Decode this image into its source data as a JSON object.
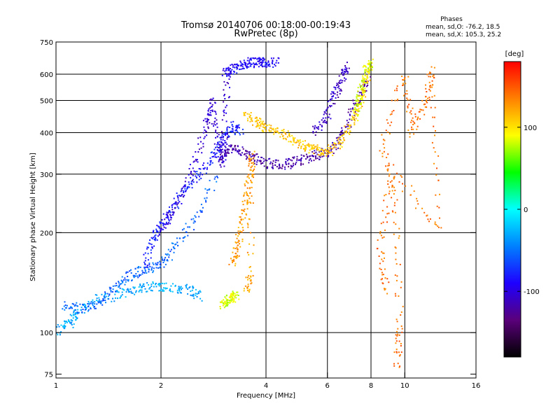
{
  "chart_data": {
    "type": "scatter",
    "title": "Tromsø 20140706 00:18:00-00:19:43",
    "subtitle": "RwPretec (8p)",
    "phases": {
      "heading": "Phases",
      "line_o": "mean, sd,O: -76.2, 18.5",
      "line_x": "mean, sd,X: 105.3, 25.2"
    },
    "xlabel": "Frequency [MHz]",
    "ylabel": "Stationary phase Virtual Height [km]",
    "xscale": "log",
    "yscale": "log",
    "xlim": [
      1,
      16
    ],
    "ylim": [
      73,
      750
    ],
    "x_ticks": [
      1,
      2,
      4,
      6,
      8,
      10,
      16
    ],
    "y_ticks": [
      75,
      100,
      200,
      300,
      400,
      500,
      600,
      750
    ],
    "x_grid": [
      2,
      4,
      6,
      8,
      10
    ],
    "y_grid": [
      100,
      200,
      300,
      400,
      500,
      600
    ],
    "grid": true,
    "colorbar": {
      "label": "[deg]",
      "min": -180,
      "max": 180,
      "ticks": [
        100,
        0,
        -100
      ],
      "colors": [
        "#000000",
        "#5a007a",
        "#1e00ff",
        "#0080ff",
        "#00ffff",
        "#00ff00",
        "#ffff00",
        "#ff8000",
        "#ff0000"
      ]
    },
    "traces": [
      {
        "x": [
          1.0,
          1.1,
          1.15,
          1.3,
          1.5,
          1.7,
          1.9,
          2.1,
          2.4,
          2.6
        ],
        "y": [
          101,
          107,
          115,
          125,
          130,
          135,
          138,
          137,
          135,
          128
        ],
        "phase": -30
      },
      {
        "x": [
          1.05,
          1.2,
          1.35,
          1.5,
          1.65,
          1.8,
          2.0,
          2.2,
          2.5,
          2.9
        ],
        "y": [
          120,
          118,
          123,
          140,
          150,
          155,
          160,
          180,
          220,
          300
        ],
        "phase": -55
      },
      {
        "x": [
          1.8,
          1.9,
          2.0,
          2.1,
          2.3,
          2.5,
          2.8,
          3.0,
          3.2,
          3.4
        ],
        "y": [
          160,
          190,
          210,
          230,
          260,
          290,
          330,
          380,
          420,
          400
        ],
        "phase": -80
      },
      {
        "x": [
          2.0,
          2.2,
          2.5,
          2.7,
          2.8,
          2.9,
          3.0,
          3.05,
          3.1
        ],
        "y": [
          200,
          240,
          320,
          420,
          500,
          380,
          320,
          400,
          600
        ],
        "phase": -105
      },
      {
        "x": [
          3.0,
          3.2,
          3.5,
          3.8,
          4.2,
          4.6,
          5.0,
          5.5,
          6.0,
          6.5,
          7.0,
          7.5,
          7.9
        ],
        "y": [
          340,
          360,
          350,
          330,
          320,
          322,
          330,
          340,
          350,
          380,
          450,
          520,
          600
        ],
        "phase": -120
      },
      {
        "x": [
          5.5,
          6.0,
          6.3,
          6.6,
          6.8
        ],
        "y": [
          400,
          450,
          520,
          580,
          640
        ],
        "phase": -110
      },
      {
        "x": [
          3.5,
          3.8,
          4.0,
          4.4,
          4.8,
          5.2,
          5.6,
          6.0,
          6.5,
          7.0,
          7.5,
          7.9
        ],
        "y": [
          450,
          430,
          410,
          400,
          380,
          360,
          355,
          350,
          370,
          420,
          500,
          620
        ],
        "phase": 110
      },
      {
        "x": [
          3.2,
          3.3,
          3.4,
          3.5,
          3.6,
          3.65,
          3.6,
          3.5
        ],
        "y": [
          160,
          180,
          210,
          250,
          300,
          340,
          150,
          130
        ],
        "phase": 125
      },
      {
        "x": [
          3.0,
          3.1,
          3.2,
          3.3
        ],
        "y": [
          120,
          125,
          128,
          130
        ],
        "phase": 85
      },
      {
        "x": [
          3.05,
          3.2,
          3.4,
          3.6,
          3.8,
          4.0,
          4.3
        ],
        "y": [
          600,
          620,
          640,
          650,
          650,
          650,
          655
        ],
        "phase": -90
      },
      {
        "x": [
          7.2,
          7.4,
          7.6,
          7.8,
          8.0
        ],
        "y": [
          450,
          500,
          560,
          620,
          650
        ],
        "phase": 85
      },
      {
        "x": [
          9.5,
          9.7,
          9.4,
          8.6,
          10.0,
          10.5,
          11.5,
          12.0,
          12.5,
          9.2,
          8.5,
          8.9
        ],
        "y": [
          80,
          105,
          240,
          370,
          600,
          400,
          500,
          620,
          205,
          310,
          180,
          130
        ],
        "phase": 140
      }
    ]
  }
}
